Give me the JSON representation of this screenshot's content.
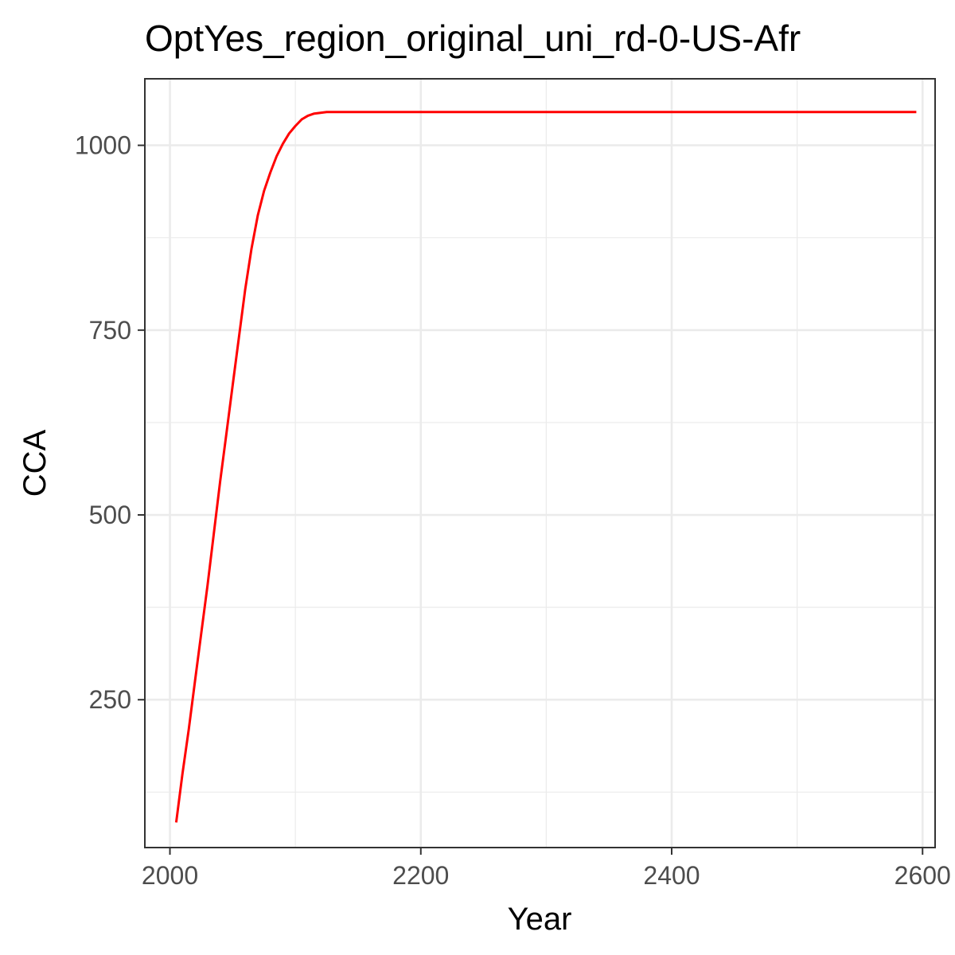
{
  "chart_data": {
    "type": "line",
    "title": "OptYes_region_original_uni_rd-0-US-Afr",
    "xlabel": "Year",
    "ylabel": "CCA",
    "xlim": [
      1980,
      2610
    ],
    "ylim": [
      50,
      1090
    ],
    "x_ticks": [
      2000,
      2200,
      2400,
      2600
    ],
    "y_ticks": [
      250,
      500,
      750,
      1000
    ],
    "x_minor_ticks": [
      2100,
      2300,
      2500
    ],
    "y_minor_ticks": [
      125,
      375,
      625,
      875
    ],
    "grid": true,
    "legend": "none",
    "series": [
      {
        "color": "#ff0000",
        "x": [
          2005,
          2010,
          2015,
          2020,
          2025,
          2030,
          2035,
          2040,
          2045,
          2050,
          2055,
          2060,
          2065,
          2070,
          2075,
          2080,
          2085,
          2090,
          2095,
          2100,
          2105,
          2110,
          2115,
          2120,
          2125,
          2130,
          2135,
          2140,
          2145,
          2150,
          2155,
          2160,
          2200,
          2300,
          2400,
          2500,
          2595
        ],
        "y": [
          84,
          150,
          210,
          275,
          340,
          405,
          475,
          545,
          610,
          675,
          740,
          805,
          860,
          905,
          938,
          963,
          985,
          1002,
          1016,
          1026,
          1035,
          1040,
          1043,
          1044,
          1045,
          1045,
          1045,
          1045,
          1045,
          1045,
          1045,
          1045,
          1045,
          1045,
          1045,
          1045,
          1045
        ]
      }
    ]
  }
}
